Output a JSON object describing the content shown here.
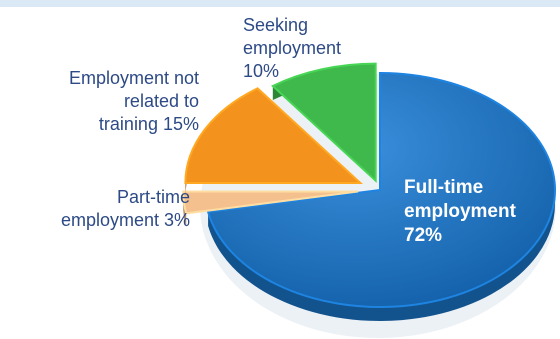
{
  "chart_data": {
    "type": "pie",
    "categories": [
      "Full-time employment",
      "Part-time employment",
      "Employment not related to training",
      "Seeking employment"
    ],
    "values": [
      72,
      3,
      15,
      10
    ],
    "colors": [
      "#1a73c4",
      "#f4c18e",
      "#f3921d",
      "#3fb94b"
    ],
    "data_labels": [
      [
        "Full-time",
        "employment",
        "72%"
      ],
      [
        "Part-time",
        "employment 3%"
      ],
      [
        "Employment not",
        "related to",
        "training 15%"
      ],
      [
        "Seeking",
        "employment",
        "10%"
      ]
    ],
    "title": ""
  }
}
